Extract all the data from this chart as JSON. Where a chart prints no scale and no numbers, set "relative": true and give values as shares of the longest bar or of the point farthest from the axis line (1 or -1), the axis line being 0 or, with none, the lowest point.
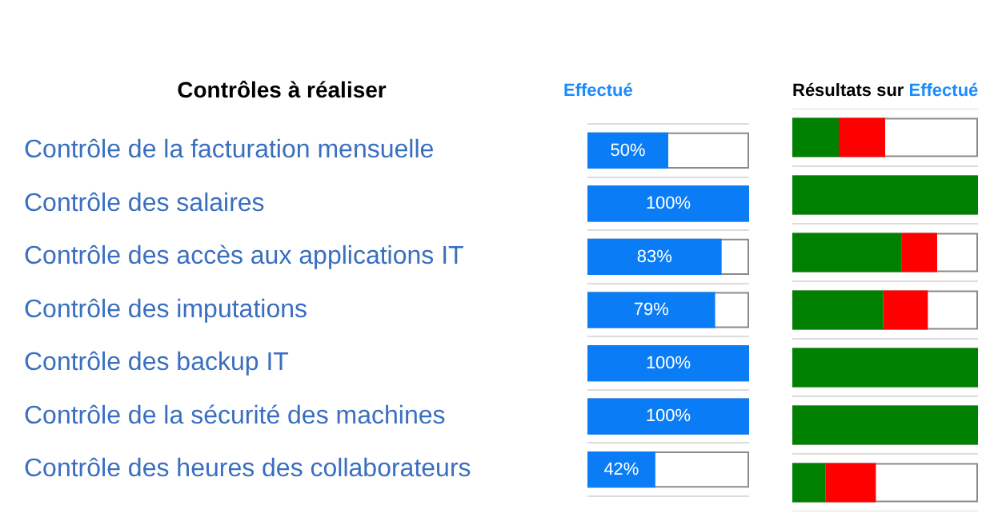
{
  "chart_data": [
    {
      "type": "bar",
      "orientation": "horizontal",
      "title": "Effectué",
      "ylabel": "Contrôles à réaliser",
      "categories": [
        "Contrôle de la facturation mensuelle",
        "Contrôle des salaires",
        "Contrôle des accès aux applications IT",
        "Contrôle des imputations",
        "Contrôle des backup IT",
        "Contrôle de la sécurité des machines",
        "Contrôle des heures des collaborateurs"
      ],
      "values": [
        50,
        100,
        83,
        79,
        100,
        100,
        42
      ],
      "color": "#0a7cf5",
      "value_labels": [
        "50%",
        "100%",
        "83%",
        "79%",
        "100%",
        "100%",
        "42%"
      ],
      "xlim": [
        0,
        100
      ],
      "tick_labels": "y",
      "grid": "y"
    },
    {
      "type": "bar",
      "orientation": "horizontal",
      "stacked": true,
      "relative": true,
      "title": "Résultats sur Effectué",
      "categories": [
        null,
        null,
        null,
        null,
        null,
        null,
        null
      ],
      "series": [
        {
          "color": "#008000",
          "values": [
            0.25,
            1,
            0.59,
            0.49,
            1,
            1,
            0.18
          ]
        },
        {
          "color": "#ff0000",
          "values": [
            0.25,
            0,
            0.19,
            0.24,
            0,
            0,
            0.27
          ]
        }
      ],
      "tick_labels": false,
      "grid": "y"
    }
  ]
}
